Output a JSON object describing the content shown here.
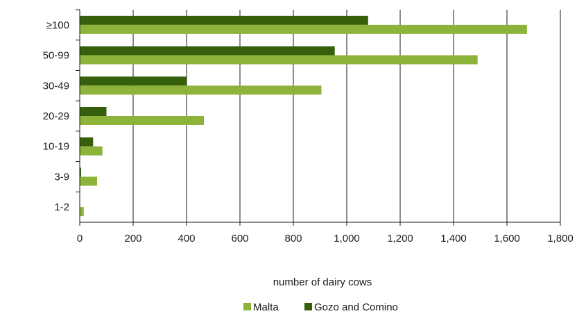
{
  "chart_data": {
    "type": "bar",
    "orientation": "horizontal",
    "categories": [
      "1-2",
      "3-9",
      "10-19",
      "20-29",
      "30-49",
      "50-99",
      "≥100"
    ],
    "series": [
      {
        "name": "Malta",
        "color": "#8db33a",
        "values": [
          15,
          65,
          85,
          465,
          905,
          1490,
          1675
        ]
      },
      {
        "name": "Gozo and Comino",
        "color": "#365f0c",
        "values": [
          0,
          5,
          50,
          100,
          400,
          955,
          1080
        ]
      }
    ],
    "xlabel": "number of dairy cows",
    "xlim": [
      0,
      1800
    ],
    "xticks": [
      "0",
      "200",
      "400",
      "600",
      "800",
      "1,000",
      "1,200",
      "1,400",
      "1,600",
      "1,800"
    ],
    "grid": "vertical",
    "legend": "bottom"
  }
}
